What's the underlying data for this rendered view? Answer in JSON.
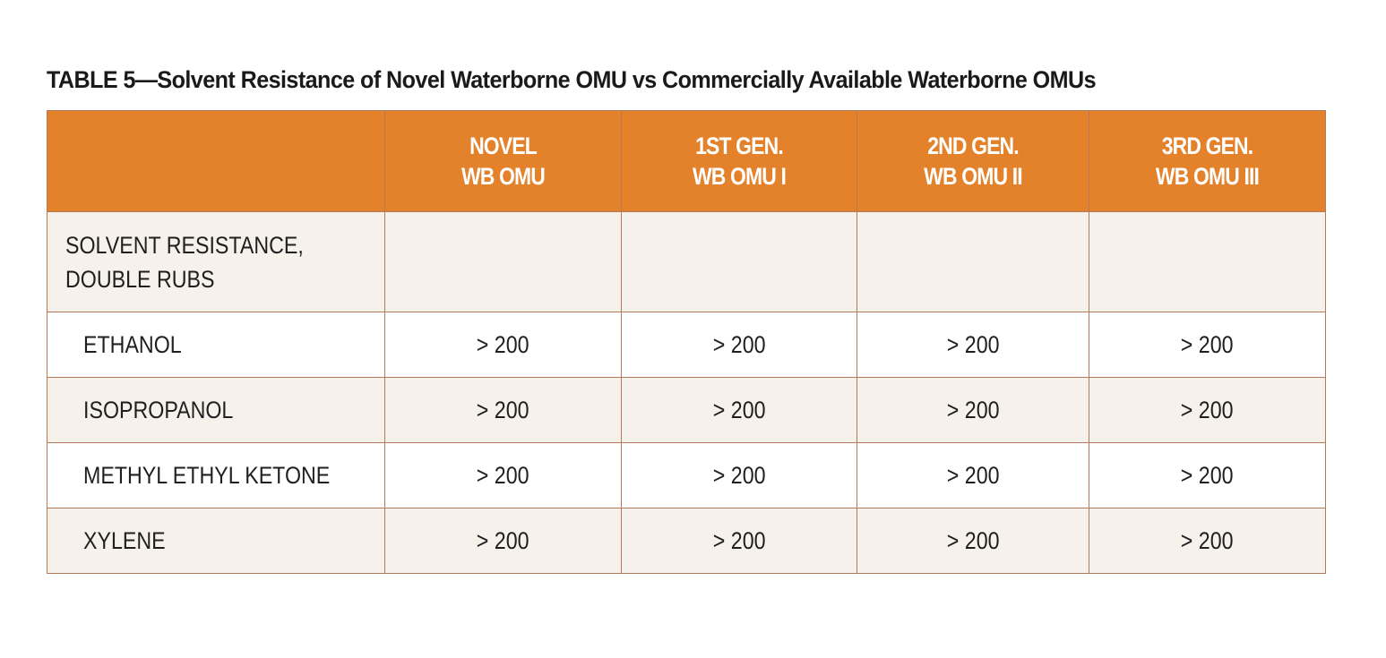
{
  "title": "TABLE 5—Solvent Resistance of Novel Waterborne OMU vs Commercially Available Waterborne OMUs",
  "table": {
    "header_fill_color": "#e3822b",
    "columns": [
      {
        "line1": "",
        "line2": ""
      },
      {
        "line1": "NOVEL",
        "line2": "WB OMU"
      },
      {
        "line1": "1ST GEN.",
        "line2": "WB OMU I"
      },
      {
        "line1": "2ND GEN.",
        "line2": "WB OMU II"
      },
      {
        "line1": "3RD GEN.",
        "line2": "WB OMU III"
      }
    ],
    "section": {
      "line1": "SOLVENT RESISTANCE,",
      "line2": "DOUBLE RUBS"
    },
    "rows": [
      {
        "label": "ETHANOL",
        "values": [
          "> 200",
          "> 200",
          "> 200",
          "> 200"
        ]
      },
      {
        "label": "ISOPROPANOL",
        "values": [
          "> 200",
          "> 200",
          "> 200",
          "> 200"
        ]
      },
      {
        "label": "METHYL ETHYL KETONE",
        "values": [
          "> 200",
          "> 200",
          "> 200",
          "> 200"
        ]
      },
      {
        "label": "XYLENE",
        "values": [
          "> 200",
          "> 200",
          "> 200",
          "> 200"
        ]
      }
    ]
  }
}
